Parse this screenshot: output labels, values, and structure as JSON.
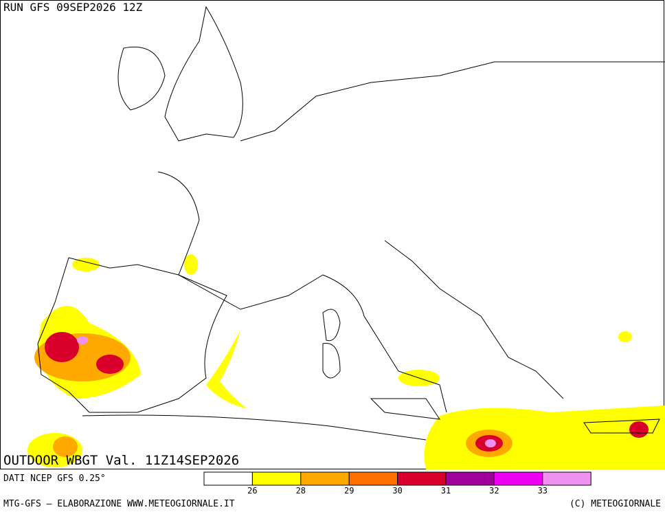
{
  "header": {
    "run": "RUN GFS 09SEP2026 12Z",
    "title": "OUTDOOR WBGT Val. 11Z14SEP2026"
  },
  "footer": {
    "source": "DATI NCEP GFS 0.25°",
    "credit": "MTG-GFS — ELABORAZIONE WWW.METEOGIORNALE.IT",
    "copyright": "(C) METEOGIORNALE"
  },
  "legend": {
    "colors": [
      "#ffffff",
      "#ffff00",
      "#ffa800",
      "#ff7000",
      "#d8002a",
      "#a0009a",
      "#f000f0",
      "#f090f0"
    ],
    "ticks": [
      26,
      28,
      29,
      30,
      31,
      32,
      33
    ]
  }
}
